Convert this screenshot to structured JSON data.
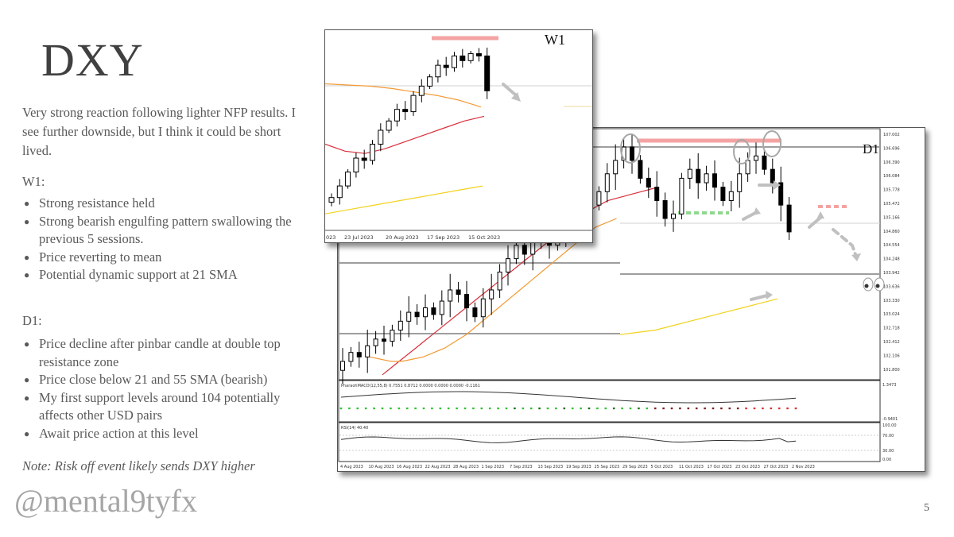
{
  "slide": {
    "title": "DXY",
    "intro": "Very strong reaction following lighter NFP results.  I see further downside, but I think it could be short lived.",
    "w1_heading": "W1:",
    "w1_points": [
      "Strong resistance held",
      "Strong bearish engulfing pattern swallowing the previous 5 sessions.",
      "Price reverting to mean",
      "Potential dynamic support at 21 SMA"
    ],
    "d1_heading": "D1:",
    "d1_points": [
      "Price decline after pinbar candle at double top resistance zone",
      "Price close below 21 and 55 SMA (bearish)",
      "My first support levels around 104 potentially affects other USD pairs",
      "Await price action at this level"
    ],
    "note": "Note: Risk off event likely sends DXY higher",
    "handle": "@mental9tyfx",
    "page_number": "5"
  },
  "colors": {
    "resistance": "#f4a3a3",
    "support": "#90d890",
    "sma21": "#d9303c",
    "sma55": "#f29a35",
    "sma200": "#f2d21b",
    "level_line": "#9e9e9e",
    "arrow": "#c0c0c0"
  },
  "chart_data": [
    {
      "type": "candlestick",
      "title": "D1",
      "y_axis_labels": [
        "107.002",
        "106.696",
        "106.390",
        "106.084",
        "105.778",
        "105.472",
        "105.166",
        "104.860",
        "104.554",
        "104.248",
        "103.942",
        "103.636",
        "103.330",
        "103.024",
        "102.718",
        "102.412",
        "102.106",
        "101.800"
      ],
      "x_axis_labels": [
        "4 Aug 2023",
        "10 Aug 2023",
        "16 Aug 2023",
        "22 Aug 2023",
        "28 Aug 2023",
        "1 Sep 2023",
        "7 Sep 2023",
        "13 Sep 2023",
        "19 Sep 2023",
        "25 Sep 2023",
        "29 Sep 2023",
        "5 Oct 2023",
        "11 Oct 2023",
        "17 Oct 2023",
        "23 Oct 2023",
        "27 Oct 2023",
        "2 Nov 2023"
      ],
      "macd_label": "PharaohMACD(12,55,8) 0.7551 0.8712 0.0000 0.0000 0.0000 -0.1161",
      "macd_axis": [
        "1.3473",
        "-0.9401"
      ],
      "rsi_label": "RSI(14) 40.40",
      "rsi_axis": [
        "100.00",
        "70.00",
        "30.00",
        "0.00"
      ],
      "support_level": 104.0,
      "resistance_zone": 106.8,
      "closes": [
        102.0,
        102.2,
        102.1,
        102.35,
        102.5,
        102.45,
        102.7,
        102.9,
        103.1,
        103.0,
        103.2,
        103.05,
        103.35,
        103.6,
        103.5,
        103.2,
        103.0,
        103.4,
        103.6,
        104.0,
        104.3,
        104.6,
        104.4,
        104.7,
        104.9,
        104.6,
        104.8,
        105.1,
        105.4,
        105.6,
        105.5,
        105.8,
        106.2,
        106.5,
        106.8,
        106.5,
        106.1,
        105.9,
        105.6,
        105.2,
        105.3,
        106.1,
        106.3,
        106.0,
        106.2,
        105.9,
        105.6,
        105.8,
        106.2,
        106.5,
        106.6,
        106.3,
        106.0,
        105.5,
        104.9
      ],
      "sma21": [
        101.7,
        101.85,
        102.0,
        102.15,
        102.3,
        102.45,
        102.6,
        102.75,
        102.9,
        103.05,
        103.2,
        103.35,
        103.5,
        103.65,
        103.8,
        103.95,
        104.1,
        104.25,
        104.4,
        104.55,
        104.7,
        104.85,
        105.0,
        105.15,
        105.3,
        105.4,
        105.5,
        105.6,
        105.65,
        105.7,
        105.75,
        105.8,
        105.85,
        105.9
      ],
      "sma55": [
        102.1,
        102.05,
        102.0,
        102.0,
        102.05,
        102.1,
        102.2,
        102.3,
        102.45,
        102.6,
        102.8,
        103.0,
        103.2,
        103.4,
        103.6,
        103.8,
        104.0,
        104.2,
        104.4,
        104.6,
        104.8,
        105.0,
        105.1,
        105.2
      ],
      "sma200": [
        102.6,
        102.65,
        102.7,
        102.8,
        102.9,
        103.0,
        103.1,
        103.2,
        103.3,
        103.4
      ]
    },
    {
      "type": "candlestick",
      "title": "W1",
      "x_axis_labels": [
        "023",
        "23 Jul 2023",
        "20 Aug 2023",
        "17 Sep 2023",
        "15 Oct 2023"
      ],
      "closes": [
        100.5,
        101.0,
        101.6,
        102.2,
        102.1,
        102.8,
        103.4,
        103.8,
        104.3,
        104.2,
        104.9,
        105.3,
        105.7,
        106.2,
        106.1,
        106.6,
        106.4,
        106.7,
        106.6,
        105.1
      ],
      "resistance_zone": 106.9
    }
  ]
}
